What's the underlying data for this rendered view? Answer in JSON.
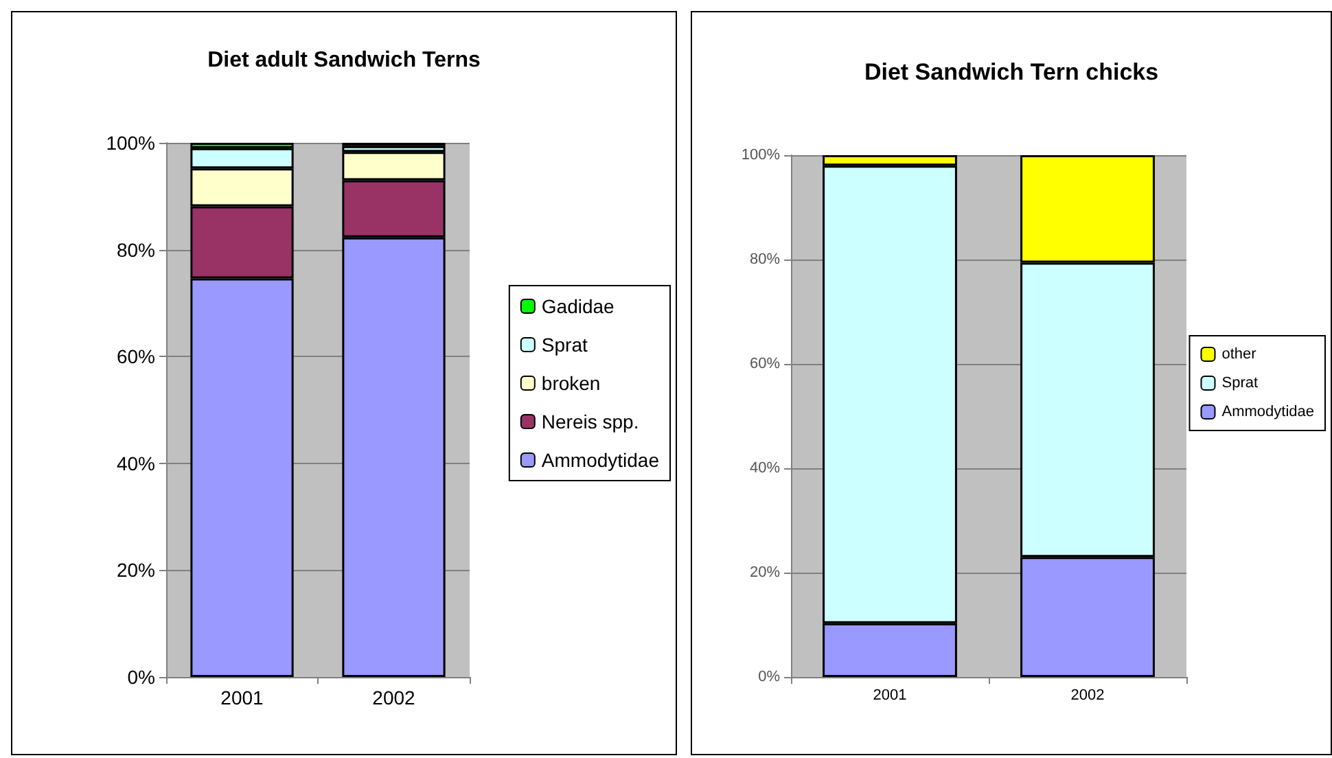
{
  "chart_data": [
    {
      "type": "bar",
      "title": "Diet adult Sandwich Terns",
      "categories": [
        "2001",
        "2002"
      ],
      "stacked": true,
      "legend": "right",
      "grid": "y",
      "ylim": [
        0,
        100
      ],
      "yticks": [
        {
          "value": 0,
          "label": "0%"
        },
        {
          "value": 20,
          "label": "20%"
        },
        {
          "value": 40,
          "label": "40%"
        },
        {
          "value": 60,
          "label": "60%"
        },
        {
          "value": 80,
          "label": "80%"
        },
        {
          "value": 100,
          "label": "100%"
        }
      ],
      "series": [
        {
          "name": "Ammodytidae",
          "color": "#9999ff",
          "values": [
            74.6,
            82.3
          ]
        },
        {
          "name": "Nereis spp.",
          "color": "#993366",
          "values": [
            13.5,
            10.7
          ]
        },
        {
          "name": "broken",
          "color": "#ffffcc",
          "values": [
            7.1,
            5.3
          ]
        },
        {
          "name": "Sprat",
          "color": "#ccffff",
          "values": [
            3.8,
            1.1
          ]
        },
        {
          "name": "Gadidae",
          "color": "#00ff00",
          "values": [
            1.0,
            0.6
          ]
        }
      ]
    },
    {
      "type": "bar",
      "title": "Diet Sandwich Tern chicks",
      "categories": [
        "2001",
        "2002"
      ],
      "stacked": true,
      "legend": "right",
      "grid": "y",
      "ylim": [
        0,
        100
      ],
      "yticks": [
        {
          "value": 0,
          "label": "0%"
        },
        {
          "value": 20,
          "label": "20%"
        },
        {
          "value": 40,
          "label": "40%"
        },
        {
          "value": 60,
          "label": "60%"
        },
        {
          "value": 80,
          "label": "80%"
        },
        {
          "value": 100,
          "label": "100%"
        }
      ],
      "series": [
        {
          "name": "Ammodytidae",
          "color": "#9999ff",
          "values": [
            10.3,
            23.0
          ]
        },
        {
          "name": "Sprat",
          "color": "#ccffff",
          "values": [
            87.7,
            56.4
          ]
        },
        {
          "name": "other",
          "color": "#ffff00",
          "values": [
            2.0,
            20.6
          ]
        }
      ]
    }
  ]
}
